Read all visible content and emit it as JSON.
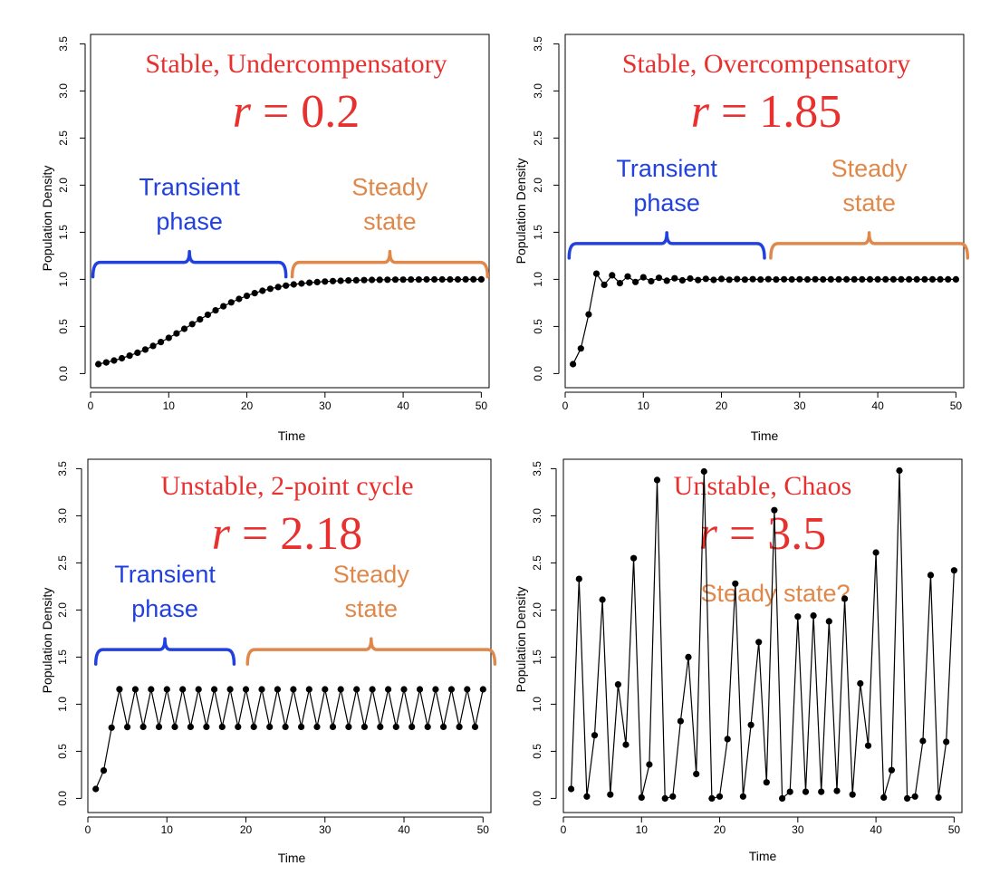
{
  "colors": {
    "title": "#e8312f",
    "transient": "#2040e0",
    "steady": "#e0884a",
    "series": "#000000"
  },
  "chart_data": [
    {
      "type": "line",
      "title": "Stable, Undercompensatory",
      "r_label": "r = 0.2",
      "r_value": 0.2,
      "x0": 0.1,
      "xlabel": "Time",
      "ylabel": "Population Density",
      "xlim": [
        0,
        51
      ],
      "ylim": [
        -0.15,
        3.6
      ],
      "xticks": [
        "0",
        "10",
        "20",
        "30",
        "40",
        "50"
      ],
      "yticks": [
        "0.0",
        "0.5",
        "1.0",
        "1.5",
        "2.0",
        "2.5",
        "3.0",
        "3.5"
      ],
      "phases": [
        {
          "label_line1": "Transient",
          "label_line2": "phase",
          "color": "transient",
          "x_start": 0.3,
          "x_end": 25,
          "y": 1.18
        },
        {
          "label_line1": "Steady",
          "label_line2": "state",
          "color": "steady",
          "x_start": 25.8,
          "x_end": 50.8,
          "y": 1.18
        }
      ]
    },
    {
      "type": "line",
      "title": "Stable, Overcompensatory",
      "r_label": "r = 1.85",
      "r_value": 1.85,
      "x0": 0.1,
      "xlabel": "Time",
      "ylabel": "Population Density",
      "xlim": [
        0,
        51
      ],
      "ylim": [
        -0.15,
        3.6
      ],
      "xticks": [
        "0",
        "10",
        "20",
        "30",
        "40",
        "50"
      ],
      "yticks": [
        "0.0",
        "0.5",
        "1.0",
        "1.5",
        "2.0",
        "2.5",
        "3.0",
        "3.5"
      ],
      "phases": [
        {
          "label_line1": "Transient",
          "label_line2": "phase",
          "color": "transient",
          "x_start": 0.5,
          "x_end": 25.5,
          "y": 1.38
        },
        {
          "label_line1": "Steady",
          "label_line2": "state",
          "color": "steady",
          "x_start": 26.3,
          "x_end": 51.5,
          "y": 1.38
        }
      ]
    },
    {
      "type": "line",
      "title": "Unstable, 2-point cycle",
      "r_label": "r = 2.18",
      "r_value": 2.18,
      "x0": 0.1,
      "xlabel": "Time",
      "ylabel": "Population Density",
      "xlim": [
        0,
        51
      ],
      "ylim": [
        -0.15,
        3.6
      ],
      "xticks": [
        "0",
        "10",
        "20",
        "30",
        "40",
        "50"
      ],
      "yticks": [
        "0.0",
        "0.5",
        "1.0",
        "1.5",
        "2.0",
        "2.5",
        "3.0",
        "3.5"
      ],
      "phases": [
        {
          "label_line1": "Transient",
          "label_line2": "phase",
          "color": "transient",
          "x_start": 1,
          "x_end": 18.5,
          "y": 1.58
        },
        {
          "label_line1": "Steady",
          "label_line2": "state",
          "color": "steady",
          "x_start": 20.2,
          "x_end": 51.5,
          "y": 1.58
        }
      ]
    },
    {
      "type": "line",
      "title": "Unstable, Chaos",
      "r_label": "r = 3.5",
      "r_value": 3.5,
      "x0": 0.1,
      "xlabel": "Time",
      "ylabel": "Population Density",
      "xlim": [
        0,
        51
      ],
      "ylim": [
        -0.15,
        3.6
      ],
      "xticks": [
        "0",
        "10",
        "20",
        "30",
        "40",
        "50"
      ],
      "yticks": [
        "0.0",
        "0.5",
        "1.0",
        "1.5",
        "2.0",
        "2.5",
        "3.0",
        "3.5"
      ],
      "annotation": "Steady state?",
      "values": [
        0.1,
        2.33,
        0.02,
        0.67,
        2.11,
        0.04,
        1.21,
        0.57,
        2.55,
        0.01,
        0.36,
        3.38,
        0.0,
        0.02,
        0.82,
        1.5,
        0.26,
        3.47,
        0.0,
        0.02,
        0.63,
        2.28,
        0.02,
        0.78,
        1.66,
        0.17,
        3.06,
        0.0,
        0.07,
        1.93,
        0.07,
        1.94,
        0.07,
        1.88,
        0.08,
        2.12,
        0.04,
        1.22,
        0.56,
        2.61,
        0.01,
        0.3,
        3.48,
        0.0,
        0.02,
        0.61,
        2.37,
        0.01,
        0.6,
        2.42
      ]
    }
  ]
}
